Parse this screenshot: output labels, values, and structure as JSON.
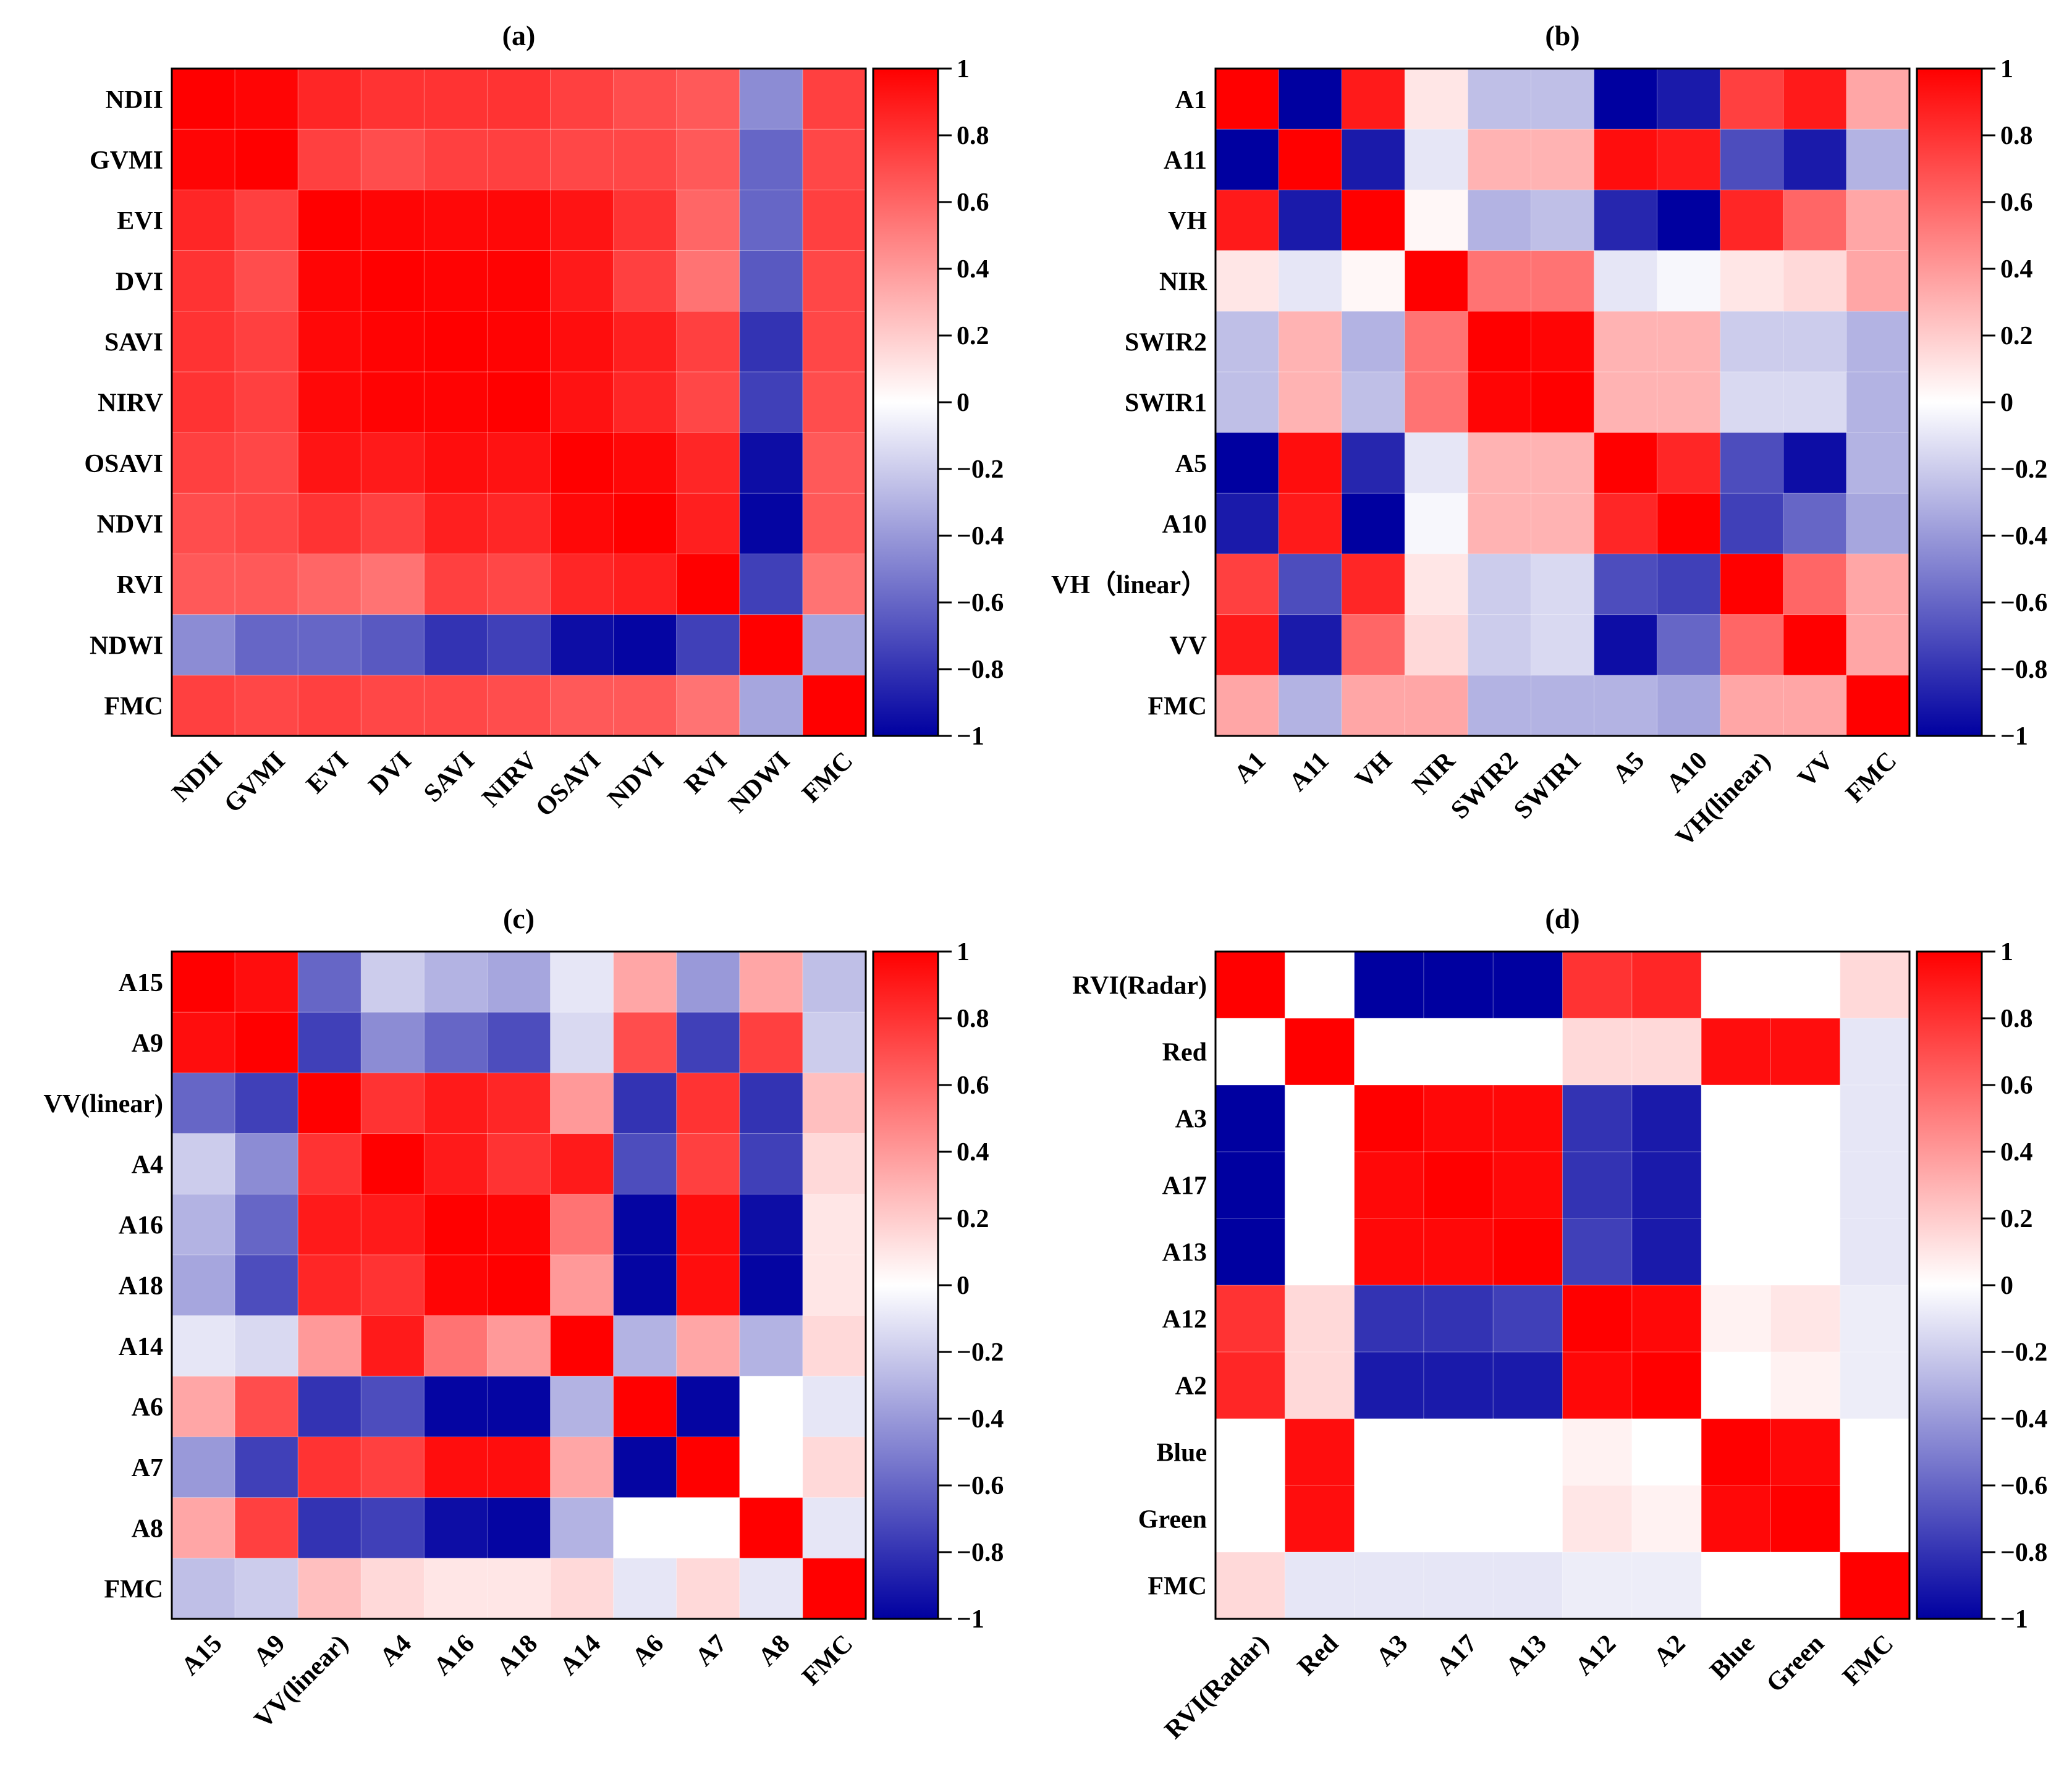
{
  "colorbar": {
    "ticks": [
      "1",
      "0.8",
      "0.6",
      "0.4",
      "0.2",
      "0",
      "−0.2",
      "−0.4",
      "−0.6",
      "−0.8",
      "−1"
    ],
    "range": [
      -1,
      1
    ],
    "colors": {
      "neg": "#0000a0",
      "mid": "#ffffff",
      "pos": "#ff0000"
    }
  },
  "chart_data": [
    {
      "type": "heatmap",
      "title": "(a)",
      "row_labels": [
        "NDII",
        "GVMI",
        "EVI",
        "DVI",
        "SAVI",
        "NIRV",
        "OSAVI",
        "NDVI",
        "RVI",
        "NDWI",
        "FMC"
      ],
      "col_labels": [
        "NDII",
        "GVMI",
        "EVI",
        "DVI",
        "SAVI",
        "NIRV",
        "OSAVI",
        "NDVI",
        "RVI",
        "NDWI",
        "FMC"
      ],
      "values": [
        [
          1,
          0.98,
          0.85,
          0.8,
          0.8,
          0.8,
          0.75,
          0.7,
          0.65,
          -0.45,
          0.75
        ],
        [
          0.98,
          1,
          0.75,
          0.7,
          0.75,
          0.75,
          0.72,
          0.72,
          0.65,
          -0.6,
          0.72
        ],
        [
          0.85,
          0.75,
          1,
          0.98,
          0.97,
          0.97,
          0.92,
          0.8,
          0.6,
          -0.6,
          0.75
        ],
        [
          0.8,
          0.7,
          0.98,
          1,
          0.99,
          0.99,
          0.9,
          0.75,
          0.55,
          -0.65,
          0.72
        ],
        [
          0.8,
          0.75,
          0.97,
          0.99,
          1,
          0.99,
          0.95,
          0.88,
          0.75,
          -0.8,
          0.72
        ],
        [
          0.8,
          0.75,
          0.97,
          0.99,
          0.99,
          1,
          0.93,
          0.85,
          0.72,
          -0.75,
          0.7
        ],
        [
          0.75,
          0.72,
          0.92,
          0.9,
          0.95,
          0.93,
          1,
          0.97,
          0.85,
          -0.95,
          0.65
        ],
        [
          0.7,
          0.72,
          0.8,
          0.75,
          0.88,
          0.85,
          0.97,
          1,
          0.88,
          -0.98,
          0.65
        ],
        [
          0.65,
          0.65,
          0.6,
          0.55,
          0.75,
          0.72,
          0.85,
          0.88,
          1,
          -0.75,
          0.55
        ],
        [
          -0.45,
          -0.6,
          -0.6,
          -0.65,
          -0.8,
          -0.75,
          -0.95,
          -0.98,
          -0.75,
          1,
          -0.35
        ],
        [
          0.75,
          0.72,
          0.75,
          0.72,
          0.72,
          0.7,
          0.65,
          0.65,
          0.55,
          -0.35,
          1
        ]
      ]
    },
    {
      "type": "heatmap",
      "title": "(b)",
      "row_labels": [
        "A1",
        "A11",
        "VH",
        "NIR",
        "SWIR2",
        "SWIR1",
        "A5",
        "A10",
        "VH（linear）",
        "VV",
        "FMC"
      ],
      "col_labels": [
        "A1",
        "A11",
        "VH",
        "NIR",
        "SWIR2",
        "SWIR1",
        "A5",
        "A10",
        "VH(linear)",
        "VV",
        "FMC"
      ],
      "values": [
        [
          1,
          -1,
          0.9,
          0.1,
          -0.25,
          -0.25,
          -1,
          -0.9,
          0.75,
          0.9,
          0.35
        ],
        [
          -1,
          1,
          -0.9,
          -0.1,
          0.3,
          0.3,
          0.95,
          0.9,
          -0.7,
          -0.9,
          -0.3
        ],
        [
          0.9,
          -0.9,
          1,
          0.03,
          -0.3,
          -0.25,
          -0.85,
          -1,
          0.85,
          0.6,
          0.35
        ],
        [
          0.1,
          -0.1,
          0.03,
          1,
          0.55,
          0.55,
          -0.1,
          -0.03,
          0.1,
          0.15,
          0.35
        ],
        [
          -0.25,
          0.3,
          -0.3,
          0.55,
          1,
          0.98,
          0.3,
          0.3,
          -0.2,
          -0.2,
          -0.3
        ],
        [
          -0.25,
          0.3,
          -0.25,
          0.55,
          0.98,
          1,
          0.3,
          0.3,
          -0.15,
          -0.15,
          -0.3
        ],
        [
          -1,
          0.95,
          -0.85,
          -0.1,
          0.3,
          0.3,
          1,
          0.85,
          -0.7,
          -0.95,
          -0.3
        ],
        [
          -0.9,
          0.9,
          -1,
          -0.03,
          0.3,
          0.3,
          0.85,
          1,
          -0.75,
          -0.6,
          -0.35
        ],
        [
          0.75,
          -0.7,
          0.85,
          0.1,
          -0.2,
          -0.15,
          -0.7,
          -0.75,
          1,
          0.6,
          0.35
        ],
        [
          0.9,
          -0.9,
          0.6,
          0.15,
          -0.2,
          -0.15,
          -0.95,
          -0.6,
          0.6,
          1,
          0.35
        ],
        [
          0.35,
          -0.3,
          0.35,
          0.35,
          -0.3,
          -0.3,
          -0.3,
          -0.35,
          0.35,
          0.35,
          1
        ]
      ]
    },
    {
      "type": "heatmap",
      "title": "(c)",
      "row_labels": [
        "A15",
        "A9",
        "VV(linear)",
        "A4",
        "A16",
        "A18",
        "A14",
        "A6",
        "A7",
        "A8",
        "FMC"
      ],
      "col_labels": [
        "A15",
        "A9",
        "VV(linear)",
        "A4",
        "A16",
        "A18",
        "A14",
        "A6",
        "A7",
        "A8",
        "FMC"
      ],
      "values": [
        [
          1,
          0.95,
          -0.6,
          -0.2,
          -0.3,
          -0.35,
          -0.1,
          0.35,
          -0.4,
          0.35,
          -0.25
        ],
        [
          0.95,
          1,
          -0.75,
          -0.45,
          -0.6,
          -0.7,
          -0.15,
          0.7,
          -0.75,
          0.75,
          -0.2
        ],
        [
          -0.6,
          -0.75,
          1,
          0.8,
          0.9,
          0.85,
          0.4,
          -0.8,
          0.8,
          -0.8,
          0.25
        ],
        [
          -0.2,
          -0.45,
          0.8,
          1,
          0.9,
          0.8,
          0.9,
          -0.7,
          0.75,
          -0.75,
          0.15
        ],
        [
          -0.3,
          -0.6,
          0.9,
          0.9,
          1,
          0.98,
          0.55,
          -0.98,
          0.95,
          -0.95,
          0.1
        ],
        [
          -0.35,
          -0.7,
          0.85,
          0.8,
          0.98,
          1,
          0.4,
          -0.98,
          0.95,
          -0.98,
          0.1
        ],
        [
          -0.1,
          -0.15,
          0.4,
          0.9,
          0.55,
          0.4,
          1,
          -0.3,
          0.35,
          -0.3,
          0.15
        ],
        [
          0.35,
          0.7,
          -0.8,
          -0.7,
          -0.98,
          -0.98,
          -0.3,
          1,
          -0.98,
          0,
          -0.1
        ],
        [
          -0.4,
          -0.75,
          0.8,
          0.75,
          0.95,
          0.95,
          0.35,
          -0.98,
          1,
          0,
          0.15
        ],
        [
          0.35,
          0.75,
          -0.8,
          -0.75,
          -0.95,
          -0.98,
          -0.3,
          0,
          0,
          1,
          -0.1
        ],
        [
          -0.25,
          -0.2,
          0.25,
          0.15,
          0.1,
          0.1,
          0.15,
          -0.1,
          0.15,
          -0.1,
          1
        ]
      ]
    },
    {
      "type": "heatmap",
      "title": "(d)",
      "row_labels": [
        "RVI(Radar)",
        "Red",
        "A3",
        "A17",
        "A13",
        "A12",
        "A2",
        "Blue",
        "Green",
        "FMC"
      ],
      "col_labels": [
        "RVI(Radar)",
        "Red",
        "A3",
        "A17",
        "A13",
        "A12",
        "A2",
        "Blue",
        "Green",
        "FMC"
      ],
      "values": [
        [
          1,
          0,
          -1,
          -1,
          -1,
          0.8,
          0.85,
          0,
          0,
          0.15
        ],
        [
          0,
          1,
          0,
          0,
          0,
          0.15,
          0.15,
          0.95,
          0.95,
          -0.1
        ],
        [
          -1,
          0,
          1,
          0.97,
          0.97,
          -0.8,
          -0.9,
          0,
          0,
          -0.1
        ],
        [
          -1,
          0,
          0.97,
          1,
          0.97,
          -0.8,
          -0.9,
          0,
          0,
          -0.1
        ],
        [
          -1,
          0,
          0.97,
          0.97,
          1,
          -0.75,
          -0.9,
          0,
          0,
          -0.1
        ],
        [
          0.8,
          0.15,
          -0.8,
          -0.8,
          -0.75,
          1,
          0.97,
          0.05,
          0.1,
          -0.07
        ],
        [
          0.85,
          0.15,
          -0.9,
          -0.9,
          -0.9,
          0.97,
          1,
          0,
          0.05,
          -0.07
        ],
        [
          0,
          0.95,
          0,
          0,
          0,
          0.05,
          0,
          1,
          0.97,
          0
        ],
        [
          0,
          0.95,
          0,
          0,
          0,
          0.1,
          0.05,
          0.97,
          1,
          0
        ],
        [
          0.15,
          -0.1,
          -0.1,
          -0.1,
          -0.1,
          -0.07,
          -0.07,
          0,
          0,
          1
        ]
      ]
    }
  ]
}
